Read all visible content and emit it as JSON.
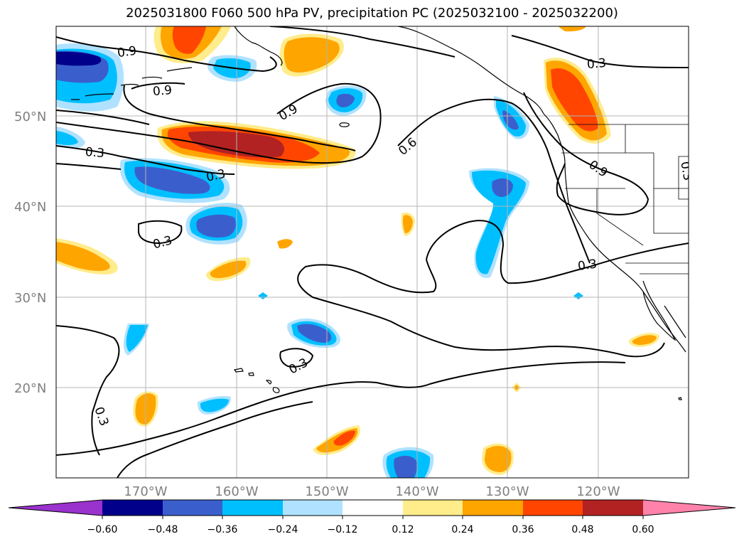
{
  "title": "2025031800 F060 500 hPa PV, precipitation PC (2025032100 - 2025032200)",
  "map": {
    "lat_labels": [
      "50°N",
      "40°N",
      "30°N",
      "20°N"
    ],
    "lon_labels": [
      "170°W",
      "160°W",
      "150°W",
      "140°W",
      "130°W",
      "120°W"
    ],
    "contour_labels": [
      "0.9",
      "0.9",
      "0.9",
      "0.6",
      "0.3",
      "0.3",
      "0.3",
      "0.3",
      "0.3",
      "0.9",
      "0.3",
      "0.3",
      "0.3"
    ]
  },
  "colorbar": {
    "tick_labels": [
      "−0.60",
      "−0.48",
      "−0.36",
      "−0.24",
      "−0.12",
      "0.12",
      "0.24",
      "0.36",
      "0.48",
      "0.60"
    ],
    "colors": [
      "#9a32cd",
      "#00008b",
      "#3a5fcd",
      "#00bfff",
      "#b0e2ff",
      "#ffffff",
      "#ffec8b",
      "#ffa500",
      "#ff4500",
      "#b22222",
      "#ff82ab"
    ]
  }
}
